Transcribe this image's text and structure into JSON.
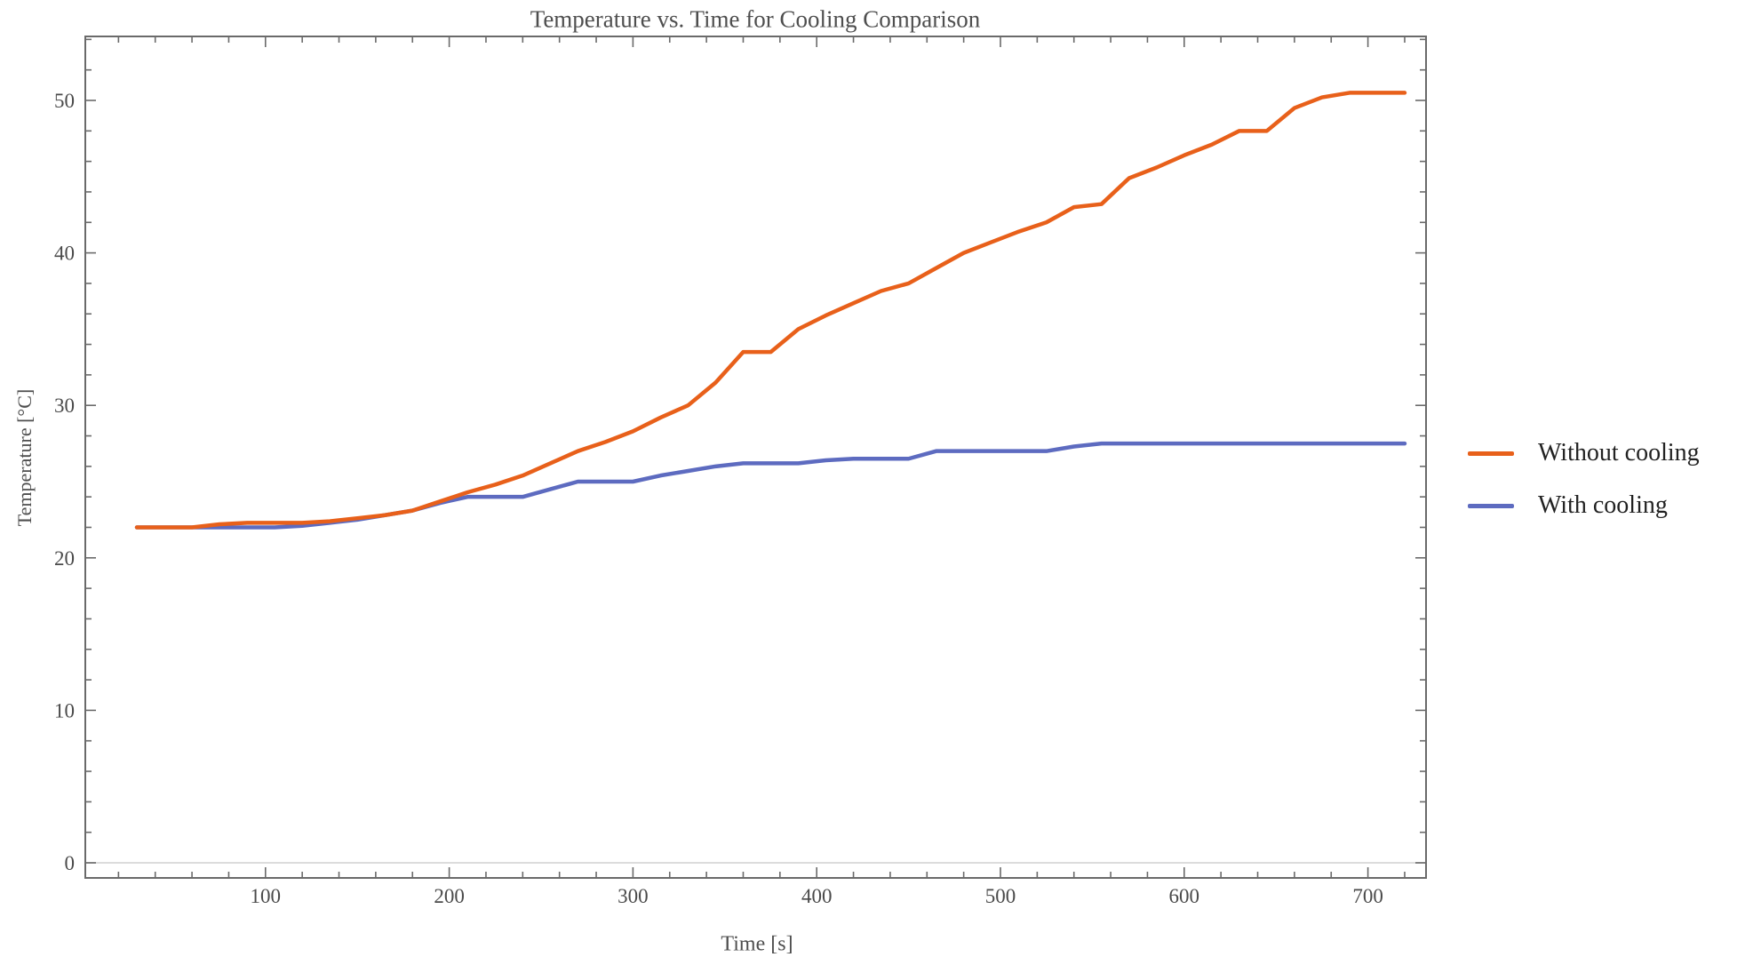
{
  "chart_data": {
    "type": "line",
    "title": "Temperature vs. Time for Cooling Comparison",
    "xlabel": "Time [s]",
    "ylabel": "Temperature [°C]",
    "xlim": [
      0,
      735
    ],
    "ylim": [
      -1,
      54
    ],
    "x_ticks": [
      100,
      200,
      300,
      400,
      500,
      600,
      700
    ],
    "y_ticks": [
      0,
      10,
      20,
      30,
      40,
      50
    ],
    "x_minor_step": 20,
    "y_minor_step": 2,
    "grid": false,
    "zero_line": true,
    "legend_position": "right-outside",
    "x": [
      30,
      45,
      60,
      75,
      90,
      105,
      120,
      135,
      150,
      165,
      180,
      195,
      210,
      225,
      240,
      255,
      270,
      285,
      300,
      315,
      330,
      345,
      360,
      375,
      390,
      405,
      420,
      435,
      450,
      465,
      480,
      495,
      510,
      525,
      540,
      555,
      570,
      585,
      600,
      615,
      630,
      645,
      660,
      675,
      690,
      705,
      720
    ],
    "series": [
      {
        "name": "Without cooling",
        "color": "#e8601a",
        "values": [
          22.0,
          22.0,
          22.0,
          22.2,
          22.3,
          22.3,
          22.3,
          22.4,
          22.6,
          22.8,
          23.1,
          23.7,
          24.3,
          24.8,
          25.4,
          26.2,
          27.0,
          27.6,
          28.3,
          29.2,
          30.0,
          31.5,
          33.5,
          33.5,
          35.0,
          35.9,
          36.7,
          37.5,
          38.0,
          39.0,
          40.0,
          40.7,
          41.4,
          42.0,
          43.0,
          43.2,
          44.9,
          45.6,
          46.4,
          47.1,
          48.0,
          48.0,
          49.5,
          50.2,
          50.5,
          50.5,
          50.5
        ]
      },
      {
        "name": "With cooling",
        "color": "#5d6bc0",
        "values": [
          22.0,
          22.0,
          22.0,
          22.0,
          22.0,
          22.0,
          22.1,
          22.3,
          22.5,
          22.8,
          23.1,
          23.6,
          24.0,
          24.0,
          24.0,
          24.5,
          25.0,
          25.0,
          25.0,
          25.4,
          25.7,
          26.0,
          26.2,
          26.2,
          26.2,
          26.4,
          26.5,
          26.5,
          26.5,
          27.0,
          27.0,
          27.0,
          27.0,
          27.0,
          27.3,
          27.5,
          27.5,
          27.5,
          27.5,
          27.5,
          27.5,
          27.5,
          27.5,
          27.5,
          27.5,
          27.5,
          27.5
        ]
      }
    ],
    "colors": {
      "frame": "#6a6a6a",
      "text": "#4a4a4a",
      "zero_line": "#dcdcdc",
      "background": "#ffffff"
    }
  }
}
